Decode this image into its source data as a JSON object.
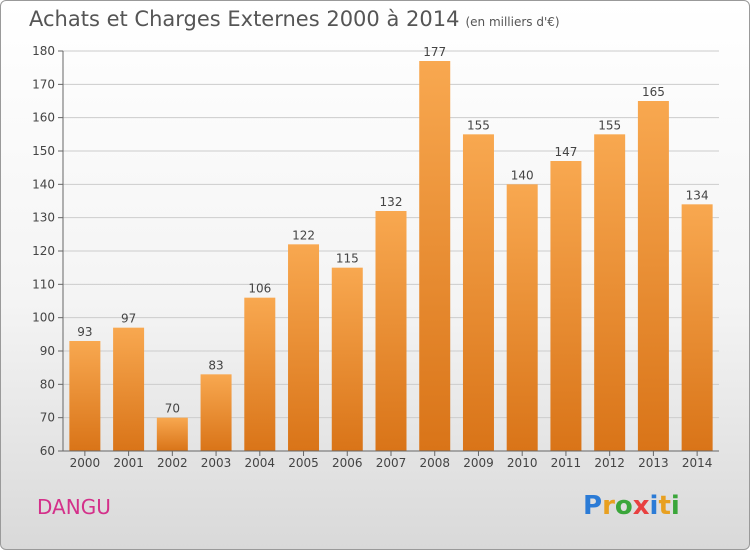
{
  "title": "Achats et Charges Externes 2000 à 2014",
  "subtitle": "(en milliers d'€)",
  "commune": "DANGU",
  "logo": {
    "letters": [
      "P",
      "r",
      "o",
      "x",
      "i",
      "t",
      "i"
    ],
    "colors": [
      "#2b7bd6",
      "#e8a020",
      "#3aa63a",
      "#e84040",
      "#2b7bd6",
      "#e8a020",
      "#3aa63a"
    ]
  },
  "colors": {
    "bar_top": "#f8a850",
    "bar_bottom": "#d97418",
    "grid": "#cccccc",
    "text": "#444444"
  },
  "chart_data": {
    "type": "bar",
    "categories": [
      "2000",
      "2001",
      "2002",
      "2003",
      "2004",
      "2005",
      "2006",
      "2007",
      "2008",
      "2009",
      "2010",
      "2011",
      "2012",
      "2013",
      "2014"
    ],
    "values": [
      93,
      97,
      70,
      83,
      106,
      122,
      115,
      132,
      177,
      155,
      140,
      147,
      155,
      165,
      134
    ],
    "ylim": [
      60,
      180
    ],
    "yticks": [
      60,
      70,
      80,
      90,
      100,
      110,
      120,
      130,
      140,
      150,
      160,
      170,
      180
    ],
    "title": "Achats et Charges Externes 2000 à 2014",
    "grid": true,
    "legend": "none"
  }
}
